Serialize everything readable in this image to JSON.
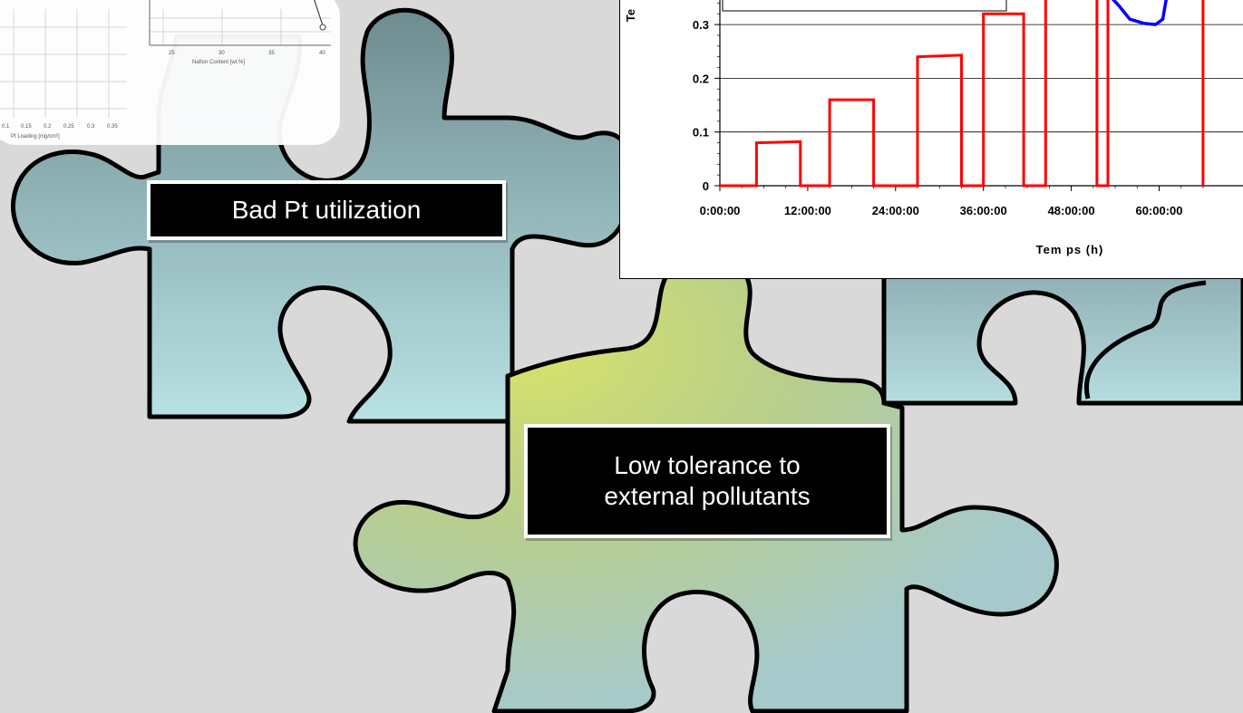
{
  "labels": {
    "puzzle_left": "Bad Pt utilization",
    "puzzle_center_line1": "Low tolerance to",
    "puzzle_center_line2": "external pollutants"
  },
  "colors": {
    "background": "#d9d9d9",
    "piece_teal_top": "#7e9ea0",
    "piece_teal_bottom": "#b6e0e3",
    "piece_yellow": "#cfdc6a",
    "outline": "#000000",
    "series_red": "#ff0000",
    "series_blue": "#0000ff"
  },
  "thumbnail": {
    "left_ticks": [
      "0.1",
      "0.15",
      "0.2",
      "0.25",
      "0.3",
      "0.35"
    ],
    "left_xlabel": "Pt Loading [mg/cm²]",
    "right_ticks": [
      "25",
      "30",
      "35",
      "40"
    ],
    "right_xlabel": "Nafion Content [wt.%]"
  },
  "chart_data": {
    "type": "line",
    "xlabel": "Tem ps (h)",
    "ylabel_partial": "Te",
    "x_ticks": [
      "0:00:00",
      "12:00:00",
      "24:00:00",
      "36:00:00",
      "48:00:00",
      "60:00:00"
    ],
    "y_ticks": [
      "0",
      "0.1",
      "0.2",
      "0.3"
    ],
    "xlim_hours": [
      0,
      66
    ],
    "ylim": [
      0,
      0.35
    ],
    "series": [
      {
        "color": "red",
        "points": [
          [
            0,
            0
          ],
          [
            5,
            0
          ],
          [
            5,
            0.08
          ],
          [
            11,
            0.082
          ],
          [
            11,
            0
          ],
          [
            15,
            0
          ],
          [
            15,
            0.16
          ],
          [
            21,
            0.16
          ],
          [
            21,
            0
          ],
          [
            27,
            0
          ],
          [
            27,
            0.24
          ],
          [
            33,
            0.243
          ],
          [
            33,
            0
          ],
          [
            36,
            0
          ],
          [
            36,
            0.32
          ],
          [
            41.5,
            0.32
          ],
          [
            41.5,
            0
          ],
          [
            44.5,
            0
          ],
          [
            44.5,
            0.35
          ],
          [
            51.5,
            0.35
          ],
          [
            51.5,
            0
          ],
          [
            53,
            0
          ],
          [
            53,
            0.35
          ],
          [
            66,
            0.35
          ],
          [
            66,
            0
          ]
        ]
      },
      {
        "color": "blue",
        "points": [
          [
            53.5,
            0.35
          ],
          [
            54.5,
            0.335
          ],
          [
            56,
            0.31
          ],
          [
            58,
            0.302
          ],
          [
            59.5,
            0.3
          ],
          [
            60.5,
            0.31
          ],
          [
            61,
            0.35
          ]
        ]
      }
    ]
  }
}
